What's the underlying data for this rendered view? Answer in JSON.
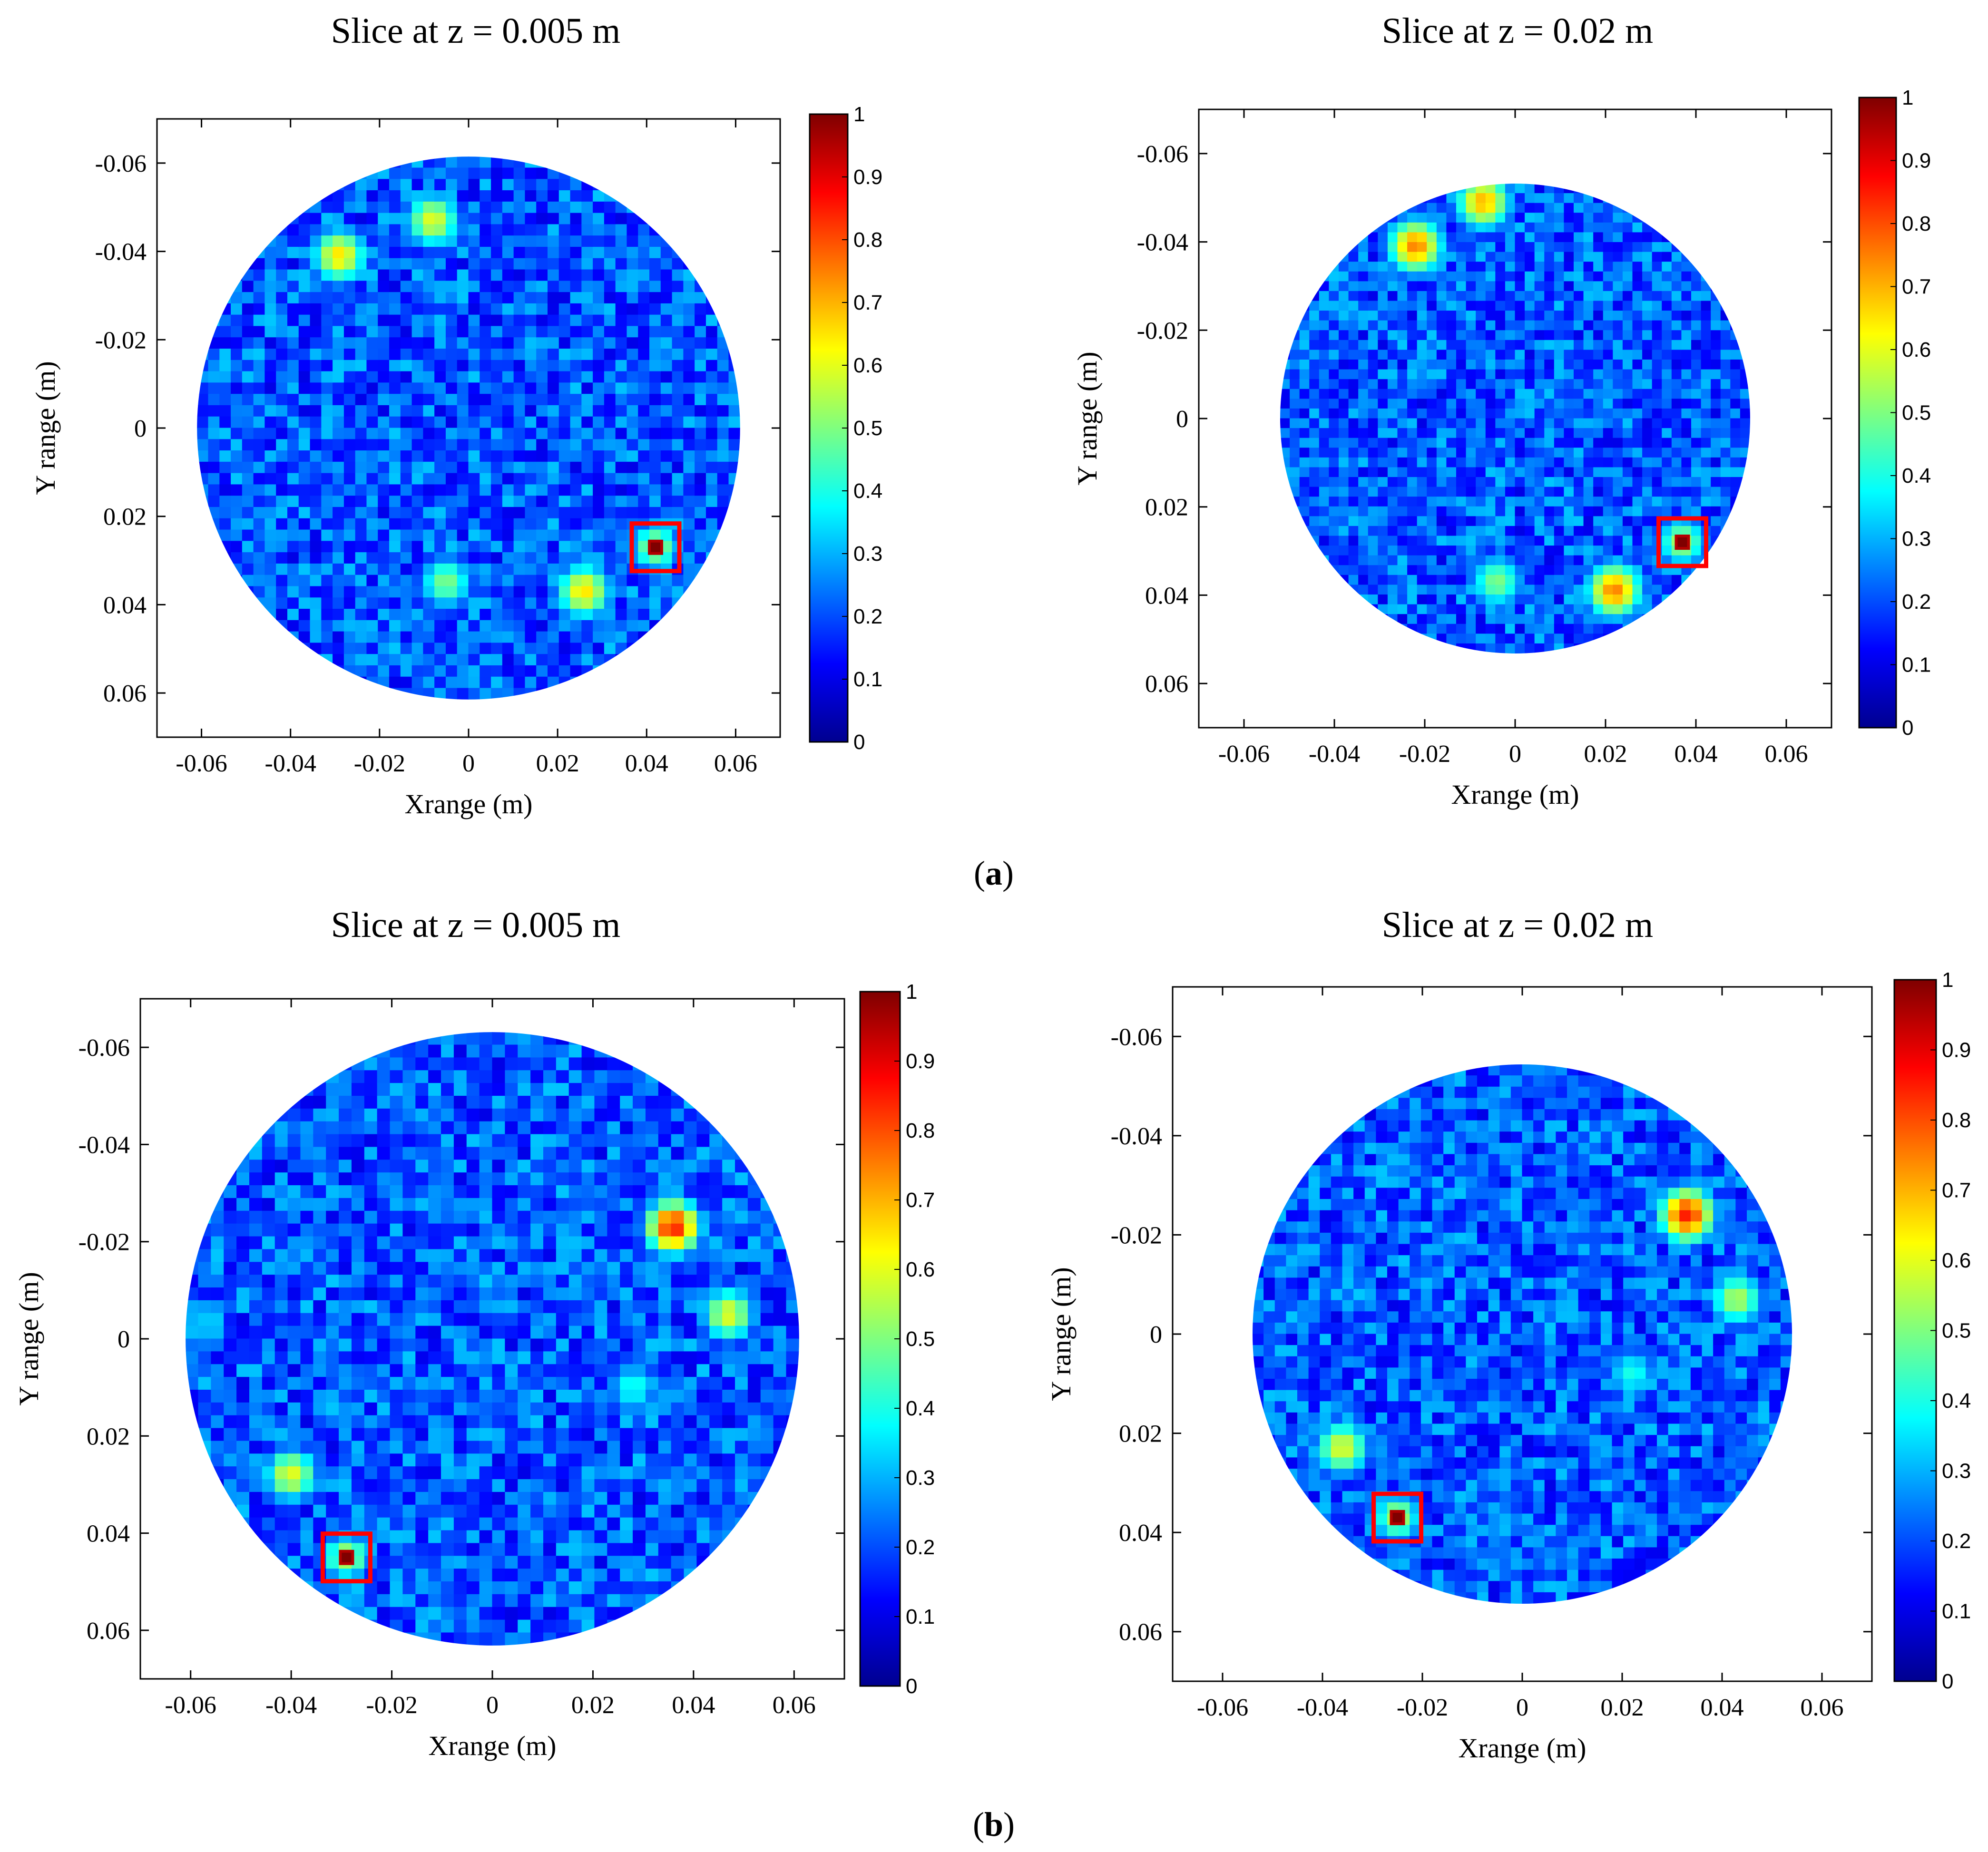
{
  "figure": {
    "captions": {
      "a": {
        "open": "(",
        "letter": "a",
        "close": ")"
      },
      "b": {
        "open": "(",
        "letter": "b",
        "close": ")"
      }
    }
  },
  "colors": {
    "marker": "#ff0000",
    "colormap": [
      "#00008f",
      "#0000ff",
      "#007fff",
      "#00ffff",
      "#7fff7f",
      "#ffff00",
      "#ff7f00",
      "#ff0000",
      "#7f0000"
    ]
  },
  "chart_data": [
    {
      "id": "a-left",
      "type": "heatmap",
      "title": "Slice at z = 0.005 m",
      "xlabel": "Xrange (m)",
      "ylabel": "Y range (m)",
      "xlim": [
        -0.07,
        0.07
      ],
      "ylim": [
        -0.07,
        0.07
      ],
      "x_ticks": [
        "-0.06",
        "-0.04",
        "-0.02",
        "0",
        "0.02",
        "0.04",
        "0.06"
      ],
      "y_ticks": [
        "-0.06",
        "-0.04",
        "-0.02",
        "0",
        "0.02",
        "0.04",
        "0.06"
      ],
      "colorbar": {
        "range": [
          0,
          1
        ],
        "ticks": [
          "0",
          "0.1",
          "0.2",
          "0.3",
          "0.4",
          "0.5",
          "0.6",
          "0.7",
          "0.8",
          "0.9",
          "1"
        ]
      },
      "aperture_radius": 0.061,
      "hotspots": [
        {
          "x": -0.029,
          "y": -0.039,
          "value": 0.65
        },
        {
          "x": -0.008,
          "y": -0.047,
          "value": 0.6
        },
        {
          "x": 0.026,
          "y": 0.037,
          "value": 0.65
        },
        {
          "x": -0.005,
          "y": 0.035,
          "value": 0.5
        }
      ],
      "target": {
        "x": 0.042,
        "y": 0.027,
        "value": 1.0
      }
    },
    {
      "id": "a-right",
      "type": "heatmap",
      "title": "Slice at z = 0.02 m",
      "xlabel": "Xrange (m)",
      "ylabel": "Y range (m)",
      "xlim": [
        -0.07,
        0.07
      ],
      "ylim": [
        -0.07,
        0.07
      ],
      "x_ticks": [
        "-0.06",
        "-0.04",
        "-0.02",
        "0",
        "0.02",
        "0.04",
        "0.06"
      ],
      "y_ticks": [
        "-0.06",
        "-0.04",
        "-0.02",
        "0",
        "0.02",
        "0.04",
        "0.06"
      ],
      "colorbar": {
        "range": [
          0,
          1
        ],
        "ticks": [
          "0",
          "0.1",
          "0.2",
          "0.3",
          "0.4",
          "0.5",
          "0.6",
          "0.7",
          "0.8",
          "0.9",
          "1"
        ]
      },
      "aperture_radius": 0.052,
      "hotspots": [
        {
          "x": -0.022,
          "y": -0.039,
          "value": 0.75
        },
        {
          "x": -0.007,
          "y": -0.049,
          "value": 0.7
        },
        {
          "x": 0.022,
          "y": 0.039,
          "value": 0.75
        },
        {
          "x": -0.004,
          "y": 0.037,
          "value": 0.5
        }
      ],
      "target": {
        "x": 0.037,
        "y": 0.028,
        "value": 1.0
      }
    },
    {
      "id": "b-left",
      "type": "heatmap",
      "title": "Slice at z = 0.005 m",
      "xlabel": "Xrange (m)",
      "ylabel": "Y range (m)",
      "xlim": [
        -0.07,
        0.07
      ],
      "ylim": [
        -0.07,
        0.07
      ],
      "x_ticks": [
        "-0.06",
        "-0.04",
        "-0.02",
        "0",
        "0.02",
        "0.04",
        "0.06"
      ],
      "y_ticks": [
        "-0.06",
        "-0.04",
        "-0.02",
        "0",
        "0.02",
        "0.04",
        "0.06"
      ],
      "colorbar": {
        "range": [
          0,
          1
        ],
        "ticks": [
          "0",
          "0.1",
          "0.2",
          "0.3",
          "0.4",
          "0.5",
          "0.6",
          "0.7",
          "0.8",
          "0.9",
          "1"
        ]
      },
      "aperture_radius": 0.061,
      "hotspots": [
        {
          "x": 0.036,
          "y": -0.023,
          "value": 0.85
        },
        {
          "x": 0.047,
          "y": -0.005,
          "value": 0.6
        },
        {
          "x": -0.04,
          "y": 0.028,
          "value": 0.6
        },
        {
          "x": 0.028,
          "y": 0.01,
          "value": 0.4
        }
      ],
      "target": {
        "x": -0.029,
        "y": 0.045,
        "value": 1.0
      }
    },
    {
      "id": "b-right",
      "type": "heatmap",
      "title": "Slice at z = 0.02 m",
      "xlabel": "Xrange (m)",
      "ylabel": "Y range (m)",
      "xlim": [
        -0.07,
        0.07
      ],
      "ylim": [
        -0.07,
        0.07
      ],
      "x_ticks": [
        "-0.06",
        "-0.04",
        "-0.02",
        "0",
        "0.02",
        "0.04",
        "0.06"
      ],
      "y_ticks": [
        "-0.06",
        "-0.04",
        "-0.02",
        "0",
        "0.02",
        "0.04",
        "0.06"
      ],
      "colorbar": {
        "range": [
          0,
          1
        ],
        "ticks": [
          "0",
          "0.1",
          "0.2",
          "0.3",
          "0.4",
          "0.5",
          "0.6",
          "0.7",
          "0.8",
          "0.9",
          "1"
        ]
      },
      "aperture_radius": 0.054,
      "hotspots": [
        {
          "x": 0.033,
          "y": -0.024,
          "value": 0.85
        },
        {
          "x": 0.043,
          "y": -0.007,
          "value": 0.55
        },
        {
          "x": -0.036,
          "y": 0.023,
          "value": 0.6
        },
        {
          "x": 0.022,
          "y": 0.008,
          "value": 0.4
        }
      ],
      "target": {
        "x": -0.025,
        "y": 0.037,
        "value": 1.0
      }
    }
  ]
}
